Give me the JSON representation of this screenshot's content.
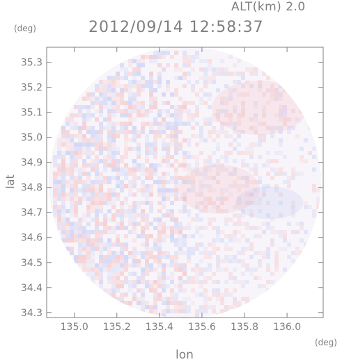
{
  "header": {
    "altitude_label": "ALT(km) 2.0",
    "timestamp": "2012/09/14 12:58:37",
    "y_unit": "(deg)",
    "x_unit": "(deg)"
  },
  "axes": {
    "xlabel": "lon",
    "ylabel": "lat",
    "x_ticks": [
      "135.0",
      "135.2",
      "135.4",
      "135.6",
      "135.8",
      "136.0"
    ],
    "y_ticks": [
      "35.3",
      "35.2",
      "35.1",
      "35.0",
      "34.9",
      "34.8",
      "34.7",
      "34.6",
      "34.5",
      "34.4",
      "34.3"
    ]
  },
  "colors": {
    "axis": "#7f7f7f",
    "positive": "#f4a6a6",
    "negative": "#a9b6f0",
    "background_field": "#f8f5fa"
  },
  "chart_data": {
    "type": "heatmap",
    "xlabel": "lon",
    "ylabel": "lat",
    "xlim": [
      134.87,
      136.17
    ],
    "ylim": [
      34.28,
      35.36
    ],
    "center": [
      135.52,
      34.82
    ],
    "radius_deg": 0.64
  }
}
